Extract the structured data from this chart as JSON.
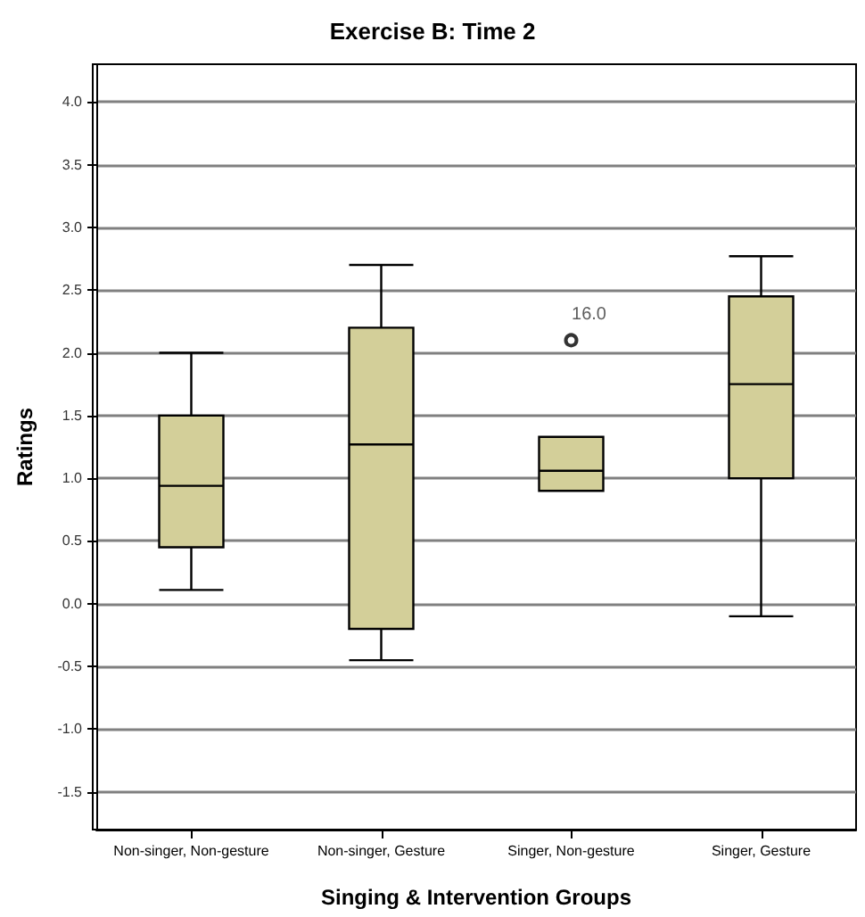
{
  "chart_data": {
    "type": "box",
    "title": "Exercise B: Time 2",
    "xlabel": "Singing & Intervention Groups",
    "ylabel": "Ratings",
    "categories": [
      "Non-singer, Non-gesture",
      "Non-singer, Gesture",
      "Singer, Non-gesture",
      "Singer, Gesture"
    ],
    "color": "#d3cf99",
    "boxes": [
      {
        "low": 0.11,
        "q1": 0.45,
        "median": 0.94,
        "q3": 1.5,
        "high": 2.0
      },
      {
        "low": -0.45,
        "q1": -0.2,
        "median": 1.27,
        "q3": 2.2,
        "high": 2.7
      },
      {
        "low": 0.9,
        "q1": 0.9,
        "median": 1.06,
        "q3": 1.33,
        "high": 1.33,
        "outliers": [
          2.1
        ]
      },
      {
        "low": -0.1,
        "q1": 1.0,
        "median": 1.75,
        "q3": 2.45,
        "high": 2.77
      }
    ],
    "annotations": [
      "16.0"
    ],
    "ylim": [
      -1.8,
      4.3
    ],
    "yticks": [
      {
        "value": -1.5,
        "label": "-1.5"
      },
      {
        "value": -1,
        "label": "-1.0"
      },
      {
        "value": -0.5,
        "label": "-0.5"
      },
      {
        "value": 0,
        "label": "0.0"
      },
      {
        "value": 0.5,
        "label": "0.5"
      },
      {
        "value": 1,
        "label": "1.0"
      },
      {
        "value": 1.5,
        "label": "1.5"
      },
      {
        "value": 2,
        "label": "2.0"
      },
      {
        "value": 2.5,
        "label": "2.5"
      },
      {
        "value": 3,
        "label": "3.0"
      },
      {
        "value": 3.5,
        "label": "3.5"
      },
      {
        "value": 4,
        "label": "4.0"
      }
    ],
    "grid": "y",
    "marker": "circle"
  }
}
